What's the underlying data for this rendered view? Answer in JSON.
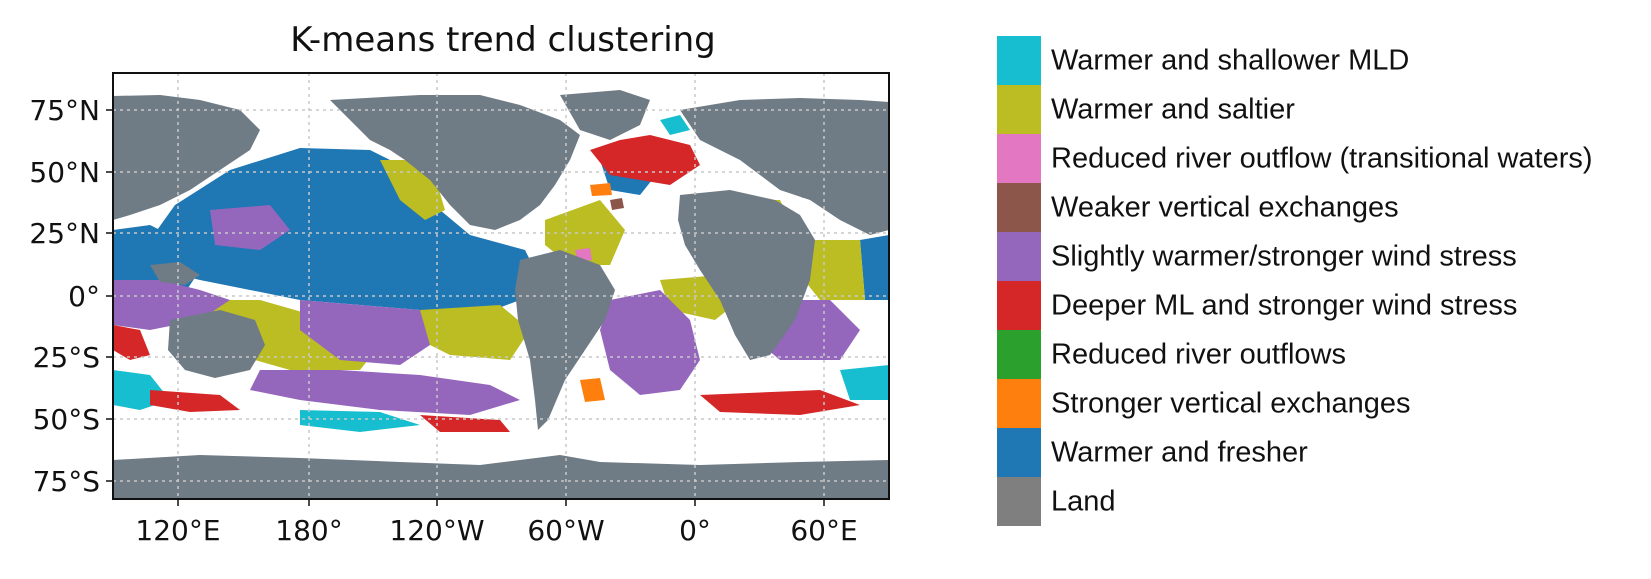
{
  "map": {
    "title": "K-means trend clustering",
    "lat_ticks": [
      "75°N",
      "50°N",
      "25°N",
      "0°",
      "25°S",
      "50°S",
      "75°S"
    ],
    "lon_ticks": [
      "120°E",
      "180°",
      "120°W",
      "60°W",
      "0°",
      "60°E"
    ],
    "colors": {
      "land": "#6f7b85",
      "unclassified": "#ffffff",
      "grid": "#c8c8c8"
    }
  },
  "legend": {
    "items": [
      {
        "label": "Warmer and shallower MLD",
        "color": "#17becf"
      },
      {
        "label": "Warmer and saltier",
        "color": "#bcbd22"
      },
      {
        "label": "Reduced river outflow (transitional waters)",
        "color": "#e377c2"
      },
      {
        "label": "Weaker vertical exchanges",
        "color": "#8c564b"
      },
      {
        "label": "Slightly warmer/stronger wind stress",
        "color": "#9467bd"
      },
      {
        "label": "Deeper ML and stronger wind stress",
        "color": "#d62728"
      },
      {
        "label": "Reduced river outflows",
        "color": "#2ca02c"
      },
      {
        "label": "Stronger vertical exchanges",
        "color": "#ff7f0e"
      },
      {
        "label": "Warmer and fresher",
        "color": "#1f77b4"
      },
      {
        "label": "Land",
        "color": "#7f7f7f"
      }
    ]
  }
}
